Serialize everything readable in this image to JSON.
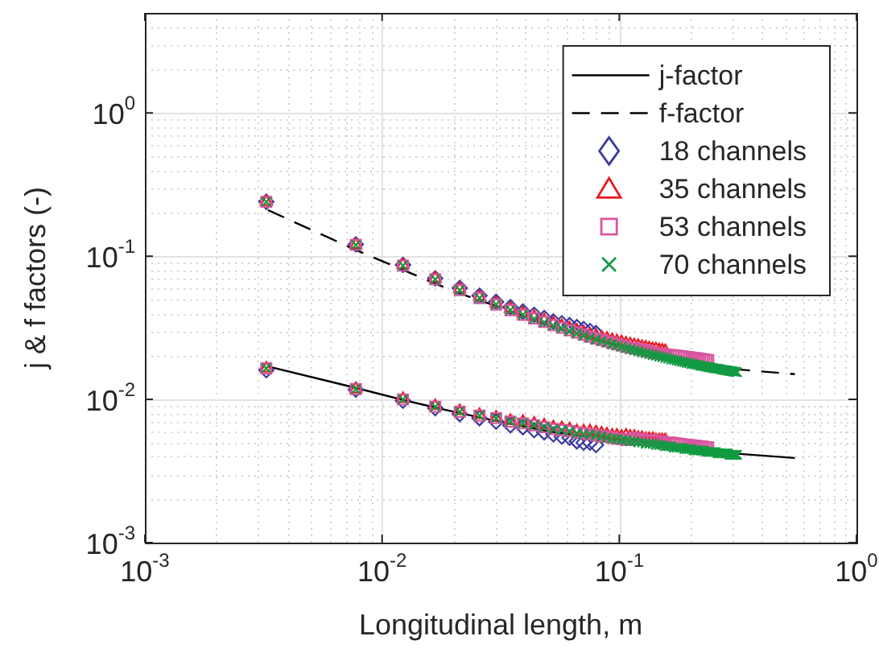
{
  "chart_data": {
    "type": "scatter",
    "xlabel": "Longitudinal length, m",
    "ylabel": "j & f factors (-)",
    "log": "xy",
    "grid": true,
    "legend": "top right",
    "xlim": [
      0.001,
      1
    ],
    "ylim": [
      0.001,
      5
    ],
    "xticks": [
      {
        "value": 0.001,
        "label": "10$^{-3}$"
      },
      {
        "value": 0.01,
        "label": "10$^{-2}$"
      },
      {
        "value": 0.1,
        "label": "10$^{-1}$"
      },
      {
        "value": 1,
        "label": "10$^{0}$"
      }
    ],
    "yticks": [
      {
        "value": 0.001,
        "label": "10$^{-3}$"
      },
      {
        "value": 0.01,
        "label": "10$^{-2}$"
      },
      {
        "value": 0.1,
        "label": "10$^{-1}$"
      },
      {
        "value": 1,
        "label": "10$^{0}$"
      }
    ],
    "series": [
      {
        "name": "j-factor",
        "type": "line",
        "color": "#000000",
        "line_style": "solid",
        "marker": "none",
        "x": [
          0.0033,
          0.0078,
          0.0123,
          0.02,
          0.03,
          0.05,
          0.1,
          0.2,
          0.3,
          0.55
        ],
        "values": [
          0.017,
          0.012,
          0.0099,
          0.0082,
          0.0071,
          0.006,
          0.0051,
          0.0045,
          0.0042,
          0.0039
        ]
      },
      {
        "name": "f-factor",
        "type": "line",
        "color": "#000000",
        "line_style": "dashed",
        "marker": "none",
        "x": [
          0.0033,
          0.0078,
          0.0123,
          0.02,
          0.03,
          0.05,
          0.1,
          0.2,
          0.3,
          0.55
        ],
        "values": [
          0.21,
          0.11,
          0.08,
          0.057,
          0.045,
          0.033,
          0.024,
          0.0185,
          0.0163,
          0.015
        ]
      },
      {
        "name": "18 channels",
        "color": "#3a3a9e",
        "marker": "diamond",
        "x": [
          0.00325,
          0.00775,
          0.01225,
          0.01675,
          0.02125,
          0.02575,
          0.03025,
          0.03475,
          0.03925,
          0.04375,
          0.04825,
          0.05275,
          0.05725,
          0.06175,
          0.06625,
          0.07075,
          0.07525,
          0.07975,
          0.00325,
          0.00775,
          0.01225,
          0.01675,
          0.02125,
          0.02575,
          0.03025,
          0.03475,
          0.03925,
          0.04375,
          0.04825,
          0.05275,
          0.05725,
          0.06175,
          0.06625,
          0.07075,
          0.07525,
          0.07975
        ],
        "values": [
          0.24,
          0.121,
          0.087,
          0.07,
          0.06,
          0.053,
          0.048,
          0.044,
          0.041,
          0.039,
          0.037,
          0.035,
          0.034,
          0.033,
          0.032,
          0.031,
          0.03,
          0.029,
          0.016,
          0.0117,
          0.0098,
          0.0087,
          0.0079,
          0.0074,
          0.007,
          0.0066,
          0.0064,
          0.0061,
          0.0059,
          0.0057,
          0.0055,
          0.0054,
          0.0051,
          0.005,
          0.005,
          0.0048
        ]
      },
      {
        "name": "35 channels",
        "color": "#e8191f",
        "marker": "triangle",
        "x": [
          0.00325,
          0.00775,
          0.01225,
          0.01675,
          0.02125,
          0.02575,
          0.03025,
          0.03475,
          0.03925,
          0.04375,
          0.04825,
          0.05275,
          0.05725,
          0.06175,
          0.06625,
          0.07075,
          0.07525,
          0.07975,
          0.08425,
          0.08875,
          0.09325,
          0.09775,
          0.10225,
          0.10675,
          0.11125,
          0.11575,
          0.12025,
          0.12475,
          0.12925,
          0.13375,
          0.13825,
          0.14275,
          0.14725,
          0.15175,
          0.15625,
          0.00325,
          0.00775,
          0.01225,
          0.01675,
          0.02125,
          0.02575,
          0.03025,
          0.03475,
          0.03925,
          0.04375,
          0.04825,
          0.05275,
          0.05725,
          0.06175,
          0.06625,
          0.07075,
          0.07525,
          0.07975,
          0.08425,
          0.08875,
          0.09325,
          0.09775,
          0.10225,
          0.10675,
          0.11125,
          0.11575,
          0.12025,
          0.12475,
          0.12925,
          0.13375,
          0.13825,
          0.14275,
          0.14725,
          0.15175,
          0.15625
        ],
        "values": [
          0.24,
          0.12,
          0.087,
          0.07,
          0.059,
          0.052,
          0.047,
          0.043,
          0.04,
          0.0377,
          0.0357,
          0.034,
          0.0326,
          0.0314,
          0.0303,
          0.0294,
          0.0285,
          0.0278,
          0.0271,
          0.0266,
          0.026,
          0.0255,
          0.0251,
          0.0246,
          0.0243,
          0.0239,
          0.0237,
          0.0233,
          0.0231,
          0.0228,
          0.0225,
          0.0224,
          0.0221,
          0.022,
          0.0218,
          0.0165,
          0.0118,
          0.0101,
          0.009,
          0.0083,
          0.0078,
          0.0075,
          0.0071,
          0.007,
          0.0068,
          0.0066,
          0.0064,
          0.0063,
          0.0062,
          0.006,
          0.006,
          0.006,
          0.0059,
          0.0058,
          0.0057,
          0.0056,
          0.0056,
          0.0055,
          0.0056,
          0.0055,
          0.0055,
          0.0054,
          0.0054,
          0.0053,
          0.0053,
          0.0053,
          0.0052,
          0.0052,
          0.0052,
          0.0052
        ]
      },
      {
        "name": "53 channels",
        "color": "#d9559f",
        "marker": "square",
        "x": [
          0.00325,
          0.00775,
          0.01225,
          0.01675,
          0.02125,
          0.02575,
          0.03025,
          0.03475,
          0.03925,
          0.04375,
          0.04825,
          0.05275,
          0.05725,
          0.06175,
          0.06625,
          0.07075,
          0.07525,
          0.07975,
          0.08425,
          0.08875,
          0.09325,
          0.09775,
          0.10225,
          0.10675,
          0.11125,
          0.11575,
          0.12025,
          0.12475,
          0.12925,
          0.13375,
          0.13825,
          0.14275,
          0.14725,
          0.15175,
          0.15625,
          0.16075,
          0.16525,
          0.16975,
          0.17425,
          0.17875,
          0.18325,
          0.18775,
          0.19225,
          0.19675,
          0.20125,
          0.20575,
          0.21025,
          0.21475,
          0.21925,
          0.22375,
          0.22825,
          0.23275,
          0.23725,
          0.00325,
          0.00775,
          0.01225,
          0.01675,
          0.02125,
          0.02575,
          0.03025,
          0.03475,
          0.03925,
          0.04375,
          0.04825,
          0.05275,
          0.05725,
          0.06175,
          0.06625,
          0.07075,
          0.07525,
          0.07975,
          0.08425,
          0.08875,
          0.09325,
          0.09775,
          0.10225,
          0.10675,
          0.11125,
          0.11575,
          0.12025,
          0.12475,
          0.12925,
          0.13375,
          0.13825,
          0.14275,
          0.14725,
          0.15175,
          0.15625,
          0.16075,
          0.16525,
          0.16975,
          0.17425,
          0.17875,
          0.18325,
          0.18775,
          0.19225,
          0.19675,
          0.20125,
          0.20575,
          0.21025,
          0.21475,
          0.21925,
          0.22375,
          0.22825,
          0.23275,
          0.23725
        ],
        "values": [
          0.24,
          0.12,
          0.086,
          0.069,
          0.058,
          0.051,
          0.046,
          0.042,
          0.039,
          0.0368,
          0.0348,
          0.033,
          0.0317,
          0.0304,
          0.0293,
          0.0283,
          0.0274,
          0.0266,
          0.026,
          0.0254,
          0.0248,
          0.0243,
          0.0238,
          0.0233,
          0.0229,
          0.0228,
          0.0225,
          0.0222,
          0.0219,
          0.0216,
          0.0213,
          0.0211,
          0.0209,
          0.0207,
          0.0206,
          0.0205,
          0.0204,
          0.0203,
          0.0202,
          0.0201,
          0.02,
          0.0199,
          0.0198,
          0.0197,
          0.0196,
          0.0195,
          0.0194,
          0.0193,
          0.0192,
          0.0191,
          0.019,
          0.0189,
          0.0188,
          0.0165,
          0.0118,
          0.01,
          0.0089,
          0.0082,
          0.0077,
          0.0074,
          0.007,
          0.0068,
          0.0066,
          0.0064,
          0.0062,
          0.0061,
          0.006,
          0.0059,
          0.0058,
          0.0057,
          0.0056,
          0.0055,
          0.0055,
          0.0054,
          0.0053,
          0.0053,
          0.0052,
          0.0052,
          0.0054,
          0.0053,
          0.0053,
          0.0052,
          0.0052,
          0.0052,
          0.0051,
          0.0051,
          0.0051,
          0.005,
          0.005,
          0.005,
          0.00495,
          0.00492,
          0.0049,
          0.00487,
          0.00484,
          0.00482,
          0.0048,
          0.00478,
          0.00476,
          0.00474,
          0.00472,
          0.0047,
          0.00468,
          0.00466,
          0.00464,
          0.00462
        ]
      },
      {
        "name": "70 channels",
        "color": "#119a41",
        "marker": "cross",
        "x": [
          0.00325,
          0.00775,
          0.01225,
          0.01675,
          0.02125,
          0.02575,
          0.03025,
          0.03475,
          0.03925,
          0.04375,
          0.04825,
          0.05275,
          0.05725,
          0.06175,
          0.06625,
          0.07075,
          0.07525,
          0.07975,
          0.08425,
          0.08875,
          0.09325,
          0.09775,
          0.10225,
          0.10675,
          0.11125,
          0.11575,
          0.12025,
          0.12475,
          0.12925,
          0.13375,
          0.13825,
          0.14275,
          0.14725,
          0.15175,
          0.15625,
          0.16075,
          0.16525,
          0.16975,
          0.17425,
          0.17875,
          0.18325,
          0.18775,
          0.19225,
          0.19675,
          0.20125,
          0.20575,
          0.21025,
          0.21475,
          0.21925,
          0.22375,
          0.22825,
          0.23275,
          0.23725,
          0.24175,
          0.24625,
          0.25075,
          0.25525,
          0.25975,
          0.26425,
          0.26875,
          0.27325,
          0.27775,
          0.28225,
          0.28675,
          0.29125,
          0.29575,
          0.30025,
          0.30475,
          0.30925,
          0.31375,
          0.00325,
          0.00775,
          0.01225,
          0.01675,
          0.02125,
          0.02575,
          0.03025,
          0.03475,
          0.03925,
          0.04375,
          0.04825,
          0.05275,
          0.05725,
          0.06175,
          0.06625,
          0.07075,
          0.07525,
          0.07975,
          0.08425,
          0.08875,
          0.09325,
          0.09775,
          0.10225,
          0.10675,
          0.11125,
          0.11575,
          0.12025,
          0.12475,
          0.12925,
          0.13375,
          0.13825,
          0.14275,
          0.14725,
          0.15175,
          0.15625,
          0.16075,
          0.16525,
          0.16975,
          0.17425,
          0.17875,
          0.18325,
          0.18775,
          0.19225,
          0.19675,
          0.20125,
          0.20575,
          0.21025,
          0.21475,
          0.21925,
          0.22375,
          0.22825,
          0.23275,
          0.23725,
          0.24175,
          0.24625,
          0.25075,
          0.25525,
          0.25975,
          0.26425,
          0.26875,
          0.27325,
          0.27775,
          0.28225,
          0.28675,
          0.29125,
          0.29575,
          0.30025,
          0.30475,
          0.30925,
          0.31375
        ],
        "values": [
          0.24,
          0.12,
          0.086,
          0.069,
          0.058,
          0.051,
          0.046,
          0.042,
          0.039,
          0.0365,
          0.0345,
          0.0327,
          0.0313,
          0.03,
          0.0289,
          0.0279,
          0.027,
          0.0262,
          0.0255,
          0.0249,
          0.0243,
          0.0238,
          0.0233,
          0.0228,
          0.0224,
          0.022,
          0.0217,
          0.0213,
          0.021,
          0.0207,
          0.0204,
          0.0202,
          0.0199,
          0.0197,
          0.0195,
          0.0193,
          0.019,
          0.0189,
          0.0187,
          0.0185,
          0.0183,
          0.0182,
          0.018,
          0.0179,
          0.0177,
          0.0176,
          0.0175,
          0.0174,
          0.0172,
          0.0171,
          0.017,
          0.0169,
          0.0168,
          0.0167,
          0.0166,
          0.0165,
          0.0164,
          0.0164,
          0.0163,
          0.0162,
          0.0161,
          0.016,
          0.016,
          0.0159,
          0.0158,
          0.0158,
          0.0157,
          0.0156,
          0.0156,
          0.0155,
          0.0165,
          0.0118,
          0.01,
          0.0089,
          0.0082,
          0.0077,
          0.0074,
          0.007,
          0.0068,
          0.0066,
          0.0064,
          0.0062,
          0.0061,
          0.006,
          0.0058,
          0.0057,
          0.0057,
          0.0056,
          0.0055,
          0.0054,
          0.0053,
          0.0053,
          0.0052,
          0.0052,
          0.0051,
          0.0051,
          0.005,
          0.005,
          0.0049,
          0.0049,
          0.0049,
          0.0048,
          0.0048,
          0.0048,
          0.0047,
          0.0047,
          0.0047,
          0.0046,
          0.0046,
          0.0046,
          0.0046,
          0.0045,
          0.0045,
          0.0045,
          0.0045,
          0.0044,
          0.0044,
          0.0044,
          0.0044,
          0.0044,
          0.0044,
          0.0043,
          0.0043,
          0.0043,
          0.0043,
          0.0043,
          0.0043,
          0.0042,
          0.0042,
          0.0042,
          0.0042,
          0.0042,
          0.0042,
          0.0042,
          0.0041,
          0.0041,
          0.0041,
          0.0041,
          0.0041,
          0.0041
        ]
      }
    ]
  }
}
